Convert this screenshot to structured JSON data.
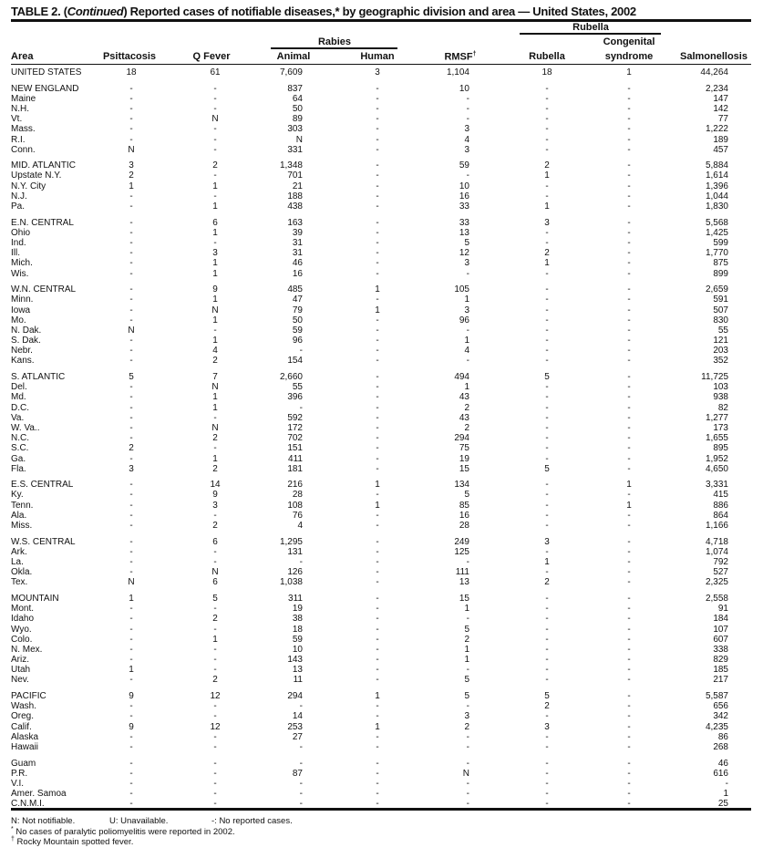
{
  "title": {
    "prefix": "TABLE 2. (",
    "italic": "Continued",
    "rest": ") Reported cases of notifiable diseases,* by geographic division and area — United States, 2002"
  },
  "headers": {
    "rubella_group": "Rubella",
    "rabies_group": "Rabies",
    "congenital_line1": "Congenital",
    "columns": [
      "Area",
      "Psittacosis",
      "Q Fever",
      "Animal",
      "Human",
      "RMSF",
      "Rubella",
      "syndrome",
      "Salmonellosis"
    ],
    "rmsf_mark": "†"
  },
  "groups": [
    [
      [
        "UNITED STATES",
        "18",
        "61",
        "7,609",
        "3",
        "1,104",
        "18",
        "1",
        "44,264"
      ]
    ],
    [
      [
        "NEW ENGLAND",
        "-",
        "-",
        "837",
        "-",
        "10",
        "-",
        "-",
        "2,234"
      ],
      [
        "Maine",
        "-",
        "-",
        "64",
        "-",
        "-",
        "-",
        "-",
        "147"
      ],
      [
        "N.H.",
        "-",
        "-",
        "50",
        "-",
        "-",
        "-",
        "-",
        "142"
      ],
      [
        "Vt.",
        "-",
        "N",
        "89",
        "-",
        "-",
        "-",
        "-",
        "77"
      ],
      [
        "Mass.",
        "-",
        "-",
        "303",
        "-",
        "3",
        "-",
        "-",
        "1,222"
      ],
      [
        "R.I.",
        "-",
        "-",
        "N",
        "-",
        "4",
        "-",
        "-",
        "189"
      ],
      [
        "Conn.",
        "N",
        "-",
        "331",
        "-",
        "3",
        "-",
        "-",
        "457"
      ]
    ],
    [
      [
        "MID. ATLANTIC",
        "3",
        "2",
        "1,348",
        "-",
        "59",
        "2",
        "-",
        "5,884"
      ],
      [
        "Upstate N.Y.",
        "2",
        "-",
        "701",
        "-",
        "-",
        "1",
        "-",
        "1,614"
      ],
      [
        "N.Y. City",
        "1",
        "1",
        "21",
        "-",
        "10",
        "-",
        "-",
        "1,396"
      ],
      [
        "N.J.",
        "-",
        "-",
        "188",
        "-",
        "16",
        "-",
        "-",
        "1,044"
      ],
      [
        "Pa.",
        "-",
        "1",
        "438",
        "-",
        "33",
        "1",
        "-",
        "1,830"
      ]
    ],
    [
      [
        "E.N. CENTRAL",
        "-",
        "6",
        "163",
        "-",
        "33",
        "3",
        "-",
        "5,568"
      ],
      [
        "Ohio",
        "-",
        "1",
        "39",
        "-",
        "13",
        "-",
        "-",
        "1,425"
      ],
      [
        "Ind.",
        "-",
        "-",
        "31",
        "-",
        "5",
        "-",
        "-",
        "599"
      ],
      [
        "Ill.",
        "-",
        "3",
        "31",
        "-",
        "12",
        "2",
        "-",
        "1,770"
      ],
      [
        "Mich.",
        "-",
        "1",
        "46",
        "-",
        "3",
        "1",
        "-",
        "875"
      ],
      [
        "Wis.",
        "-",
        "1",
        "16",
        "-",
        "-",
        "-",
        "-",
        "899"
      ]
    ],
    [
      [
        "W.N. CENTRAL",
        "-",
        "9",
        "485",
        "1",
        "105",
        "-",
        "-",
        "2,659"
      ],
      [
        "Minn.",
        "-",
        "1",
        "47",
        "-",
        "1",
        "-",
        "-",
        "591"
      ],
      [
        "Iowa",
        "-",
        "N",
        "79",
        "1",
        "3",
        "-",
        "-",
        "507"
      ],
      [
        "Mo.",
        "-",
        "1",
        "50",
        "-",
        "96",
        "-",
        "-",
        "830"
      ],
      [
        "N. Dak.",
        "N",
        "-",
        "59",
        "-",
        "-",
        "-",
        "-",
        "55"
      ],
      [
        "S. Dak.",
        "-",
        "1",
        "96",
        "-",
        "1",
        "-",
        "-",
        "121"
      ],
      [
        "Nebr.",
        "-",
        "4",
        "-",
        "-",
        "4",
        "-",
        "-",
        "203"
      ],
      [
        "Kans.",
        "-",
        "2",
        "154",
        "-",
        "-",
        "-",
        "-",
        "352"
      ]
    ],
    [
      [
        "S. ATLANTIC",
        "5",
        "7",
        "2,660",
        "-",
        "494",
        "5",
        "-",
        "11,725"
      ],
      [
        "Del.",
        "-",
        "N",
        "55",
        "-",
        "1",
        "-",
        "-",
        "103"
      ],
      [
        "Md.",
        "-",
        "1",
        "396",
        "-",
        "43",
        "-",
        "-",
        "938"
      ],
      [
        "D.C.",
        "-",
        "1",
        "-",
        "-",
        "2",
        "-",
        "-",
        "82"
      ],
      [
        "Va.",
        "-",
        "-",
        "592",
        "-",
        "43",
        "-",
        "-",
        "1,277"
      ],
      [
        "W. Va..",
        "-",
        "N",
        "172",
        "-",
        "2",
        "-",
        "-",
        "173"
      ],
      [
        "N.C.",
        "-",
        "2",
        "702",
        "-",
        "294",
        "-",
        "-",
        "1,655"
      ],
      [
        "S.C.",
        "2",
        "-",
        "151",
        "-",
        "75",
        "-",
        "-",
        "895"
      ],
      [
        "Ga.",
        "-",
        "1",
        "411",
        "-",
        "19",
        "-",
        "-",
        "1,952"
      ],
      [
        "Fla.",
        "3",
        "2",
        "181",
        "-",
        "15",
        "5",
        "-",
        "4,650"
      ]
    ],
    [
      [
        "E.S. CENTRAL",
        "-",
        "14",
        "216",
        "1",
        "134",
        "-",
        "1",
        "3,331"
      ],
      [
        "Ky.",
        "-",
        "9",
        "28",
        "-",
        "5",
        "-",
        "-",
        "415"
      ],
      [
        "Tenn.",
        "-",
        "3",
        "108",
        "1",
        "85",
        "-",
        "1",
        "886"
      ],
      [
        "Ala.",
        "-",
        "-",
        "76",
        "-",
        "16",
        "-",
        "-",
        "864"
      ],
      [
        "Miss.",
        "-",
        "2",
        "4",
        "-",
        "28",
        "-",
        "-",
        "1,166"
      ]
    ],
    [
      [
        "W.S. CENTRAL",
        "-",
        "6",
        "1,295",
        "-",
        "249",
        "3",
        "-",
        "4,718"
      ],
      [
        "Ark.",
        "-",
        "-",
        "131",
        "-",
        "125",
        "-",
        "-",
        "1,074"
      ],
      [
        "La.",
        "-",
        "-",
        "-",
        "-",
        "-",
        "1",
        "-",
        "792"
      ],
      [
        "Okla.",
        "-",
        "N",
        "126",
        "-",
        "111",
        "-",
        "-",
        "527"
      ],
      [
        "Tex.",
        "N",
        "6",
        "1,038",
        "-",
        "13",
        "2",
        "-",
        "2,325"
      ]
    ],
    [
      [
        "MOUNTAIN",
        "1",
        "5",
        "311",
        "-",
        "15",
        "-",
        "-",
        "2,558"
      ],
      [
        "Mont.",
        "-",
        "-",
        "19",
        "-",
        "1",
        "-",
        "-",
        "91"
      ],
      [
        "Idaho",
        "-",
        "2",
        "38",
        "-",
        "-",
        "-",
        "-",
        "184"
      ],
      [
        "Wyo.",
        "-",
        "-",
        "18",
        "-",
        "5",
        "-",
        "-",
        "107"
      ],
      [
        "Colo.",
        "-",
        "1",
        "59",
        "-",
        "2",
        "-",
        "-",
        "607"
      ],
      [
        "N. Mex.",
        "-",
        "-",
        "10",
        "-",
        "1",
        "-",
        "-",
        "338"
      ],
      [
        "Ariz.",
        "-",
        "-",
        "143",
        "-",
        "1",
        "-",
        "-",
        "829"
      ],
      [
        "Utah",
        "1",
        "-",
        "13",
        "-",
        "-",
        "-",
        "-",
        "185"
      ],
      [
        "Nev.",
        "-",
        "2",
        "11",
        "-",
        "5",
        "-",
        "-",
        "217"
      ]
    ],
    [
      [
        "PACIFIC",
        "9",
        "12",
        "294",
        "1",
        "5",
        "5",
        "-",
        "5,587"
      ],
      [
        "Wash.",
        "-",
        "-",
        "-",
        "-",
        "-",
        "2",
        "-",
        "656"
      ],
      [
        "Oreg.",
        "-",
        "-",
        "14",
        "-",
        "3",
        "-",
        "-",
        "342"
      ],
      [
        "Calif.",
        "9",
        "12",
        "253",
        "1",
        "2",
        "3",
        "-",
        "4,235"
      ],
      [
        "Alaska",
        "-",
        "-",
        "27",
        "-",
        "-",
        "-",
        "-",
        "86"
      ],
      [
        "Hawaii",
        "-",
        "-",
        "-",
        "-",
        "-",
        "-",
        "-",
        "268"
      ]
    ],
    [
      [
        "Guam",
        "-",
        "-",
        "-",
        "-",
        "-",
        "-",
        "-",
        "46"
      ],
      [
        "P.R.",
        "-",
        "-",
        "87",
        "-",
        "N",
        "-",
        "-",
        "616"
      ],
      [
        "V.I.",
        "-",
        "-",
        "-",
        "-",
        "-",
        "-",
        "-",
        "-"
      ],
      [
        "Amer. Samoa",
        "-",
        "-",
        "-",
        "-",
        "-",
        "-",
        "-",
        "1"
      ],
      [
        "C.N.M.I.",
        "-",
        "-",
        "-",
        "-",
        "-",
        "-",
        "-",
        "25"
      ]
    ]
  ],
  "footnotes": {
    "legend_n": "N: Not notifiable.",
    "legend_u": "U: Unavailable.",
    "legend_dash": "-: No reported cases.",
    "star_mark": "*",
    "star": "No cases of paralytic poliomyelitis were reported in 2002.",
    "dagger_mark": "†",
    "dagger": "Rocky Mountain spotted fever."
  }
}
